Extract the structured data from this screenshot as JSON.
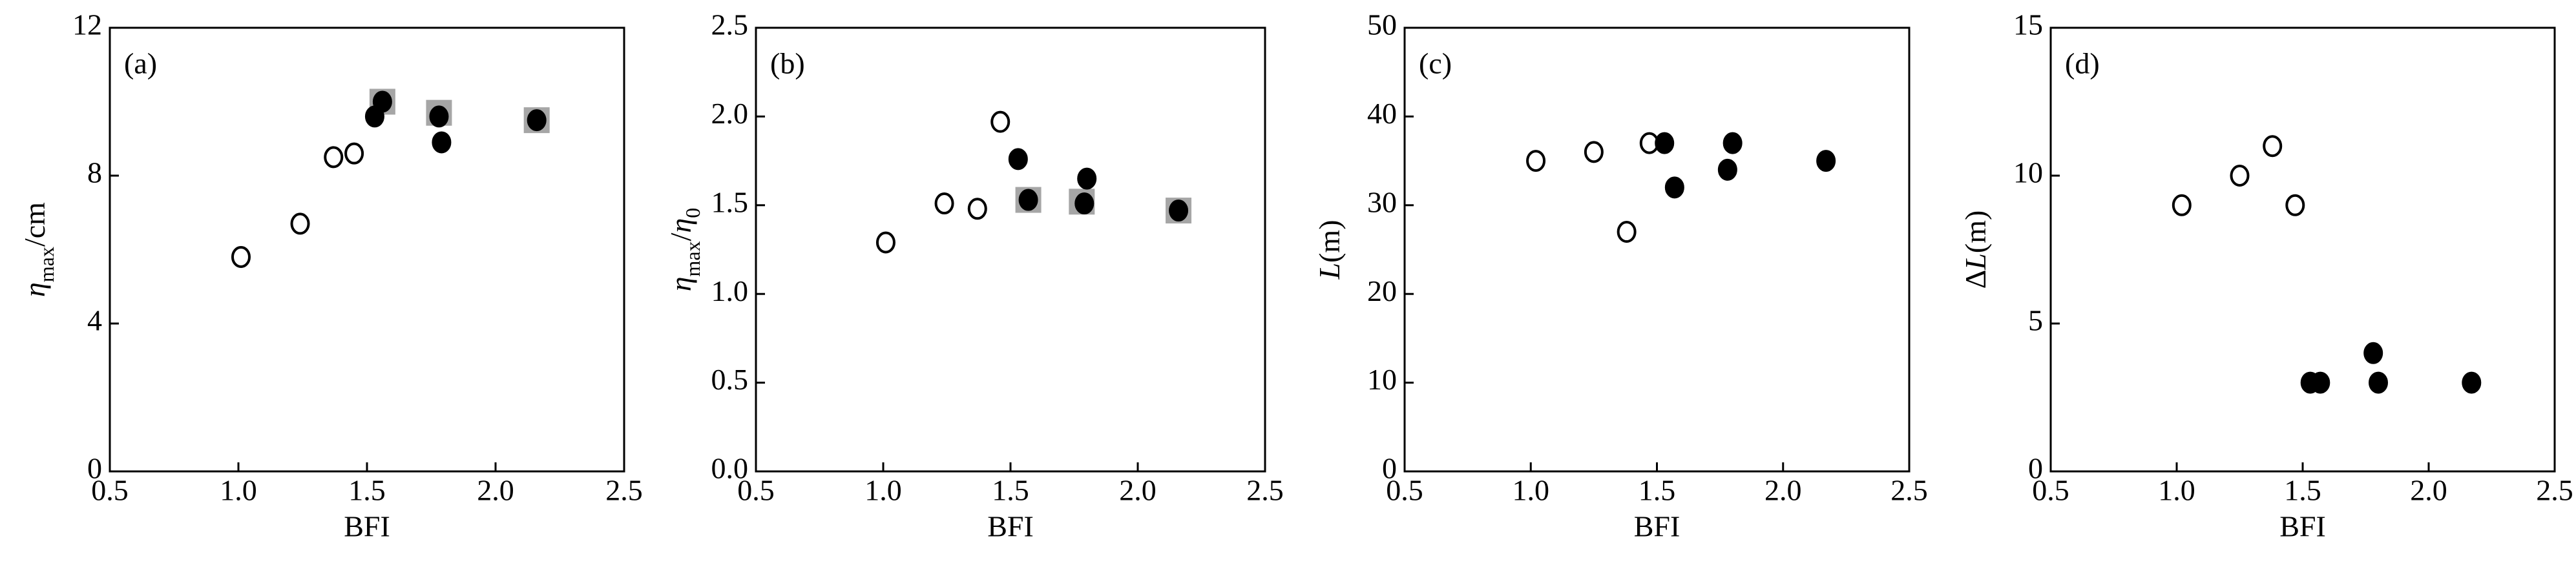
{
  "chart_data": [
    {
      "type": "scatter",
      "annotation": "(a)",
      "xlabel": "BFI",
      "ylabel": [
        {
          "text": "η",
          "italic": true
        },
        {
          "text": "max",
          "sub": true
        },
        {
          "text": "/cm"
        }
      ],
      "xlim": [
        0.5,
        2.5
      ],
      "xticks": [
        0.5,
        {
          "value": 1,
          "label": "1.0"
        },
        1.5,
        {
          "value": 2,
          "label": "2.0"
        },
        2.5
      ],
      "ylim": [
        0,
        12
      ],
      "yticks": [
        0,
        4,
        8,
        12
      ],
      "series": [
        {
          "marker": "square",
          "color": "#a6a6a6",
          "x": [
            1.56,
            1.78,
            2.16
          ],
          "values": [
            10.0,
            9.7,
            9.5
          ]
        },
        {
          "marker": "open-circle",
          "color": "#000000",
          "x": [
            1.01,
            1.24,
            1.37,
            1.45
          ],
          "values": [
            5.8,
            6.7,
            8.5,
            8.6
          ]
        },
        {
          "marker": "filled-circle",
          "color": "#000000",
          "x": [
            1.53,
            1.56,
            1.79,
            1.78,
            2.16
          ],
          "values": [
            9.6,
            10.0,
            8.9,
            9.6,
            9.5
          ]
        }
      ]
    },
    {
      "type": "scatter",
      "annotation": "(b)",
      "xlabel": "BFI",
      "ylabel": [
        {
          "text": "η",
          "italic": true
        },
        {
          "text": "max",
          "sub": true
        },
        {
          "text": "/"
        },
        {
          "text": "η",
          "italic": true
        },
        {
          "text": "0",
          "sub": true
        }
      ],
      "xlim": [
        0.5,
        2.5
      ],
      "xticks": [
        0.5,
        {
          "value": 1,
          "label": "1.0"
        },
        1.5,
        {
          "value": 2,
          "label": "2.0"
        },
        2.5
      ],
      "ylim": [
        0,
        2.5
      ],
      "yticks": [
        {
          "value": 0,
          "label": "0.0"
        },
        0.5,
        {
          "value": 1,
          "label": "1.0"
        },
        1.5,
        {
          "value": 2,
          "label": "2.0"
        },
        2.5
      ],
      "series": [
        {
          "marker": "square",
          "color": "#a6a6a6",
          "x": [
            1.57,
            1.78,
            2.16
          ],
          "values": [
            1.53,
            1.52,
            1.47
          ]
        },
        {
          "marker": "open-circle",
          "color": "#000000",
          "x": [
            1.01,
            1.24,
            1.37,
            1.46
          ],
          "values": [
            1.29,
            1.51,
            1.48,
            1.97
          ]
        },
        {
          "marker": "filled-circle",
          "color": "#000000",
          "x": [
            1.53,
            1.57,
            1.79,
            1.8,
            2.16
          ],
          "values": [
            1.76,
            1.53,
            1.51,
            1.65,
            1.47
          ]
        }
      ]
    },
    {
      "type": "scatter",
      "annotation": "(c)",
      "xlabel": "BFI",
      "ylabel": [
        {
          "text": "L",
          "italic": true
        },
        {
          "text": "(m)"
        }
      ],
      "xlim": [
        0.5,
        2.5
      ],
      "xticks": [
        0.5,
        {
          "value": 1,
          "label": "1.0"
        },
        1.5,
        {
          "value": 2,
          "label": "2.0"
        },
        2.5
      ],
      "ylim": [
        0,
        50
      ],
      "yticks": [
        0,
        10,
        20,
        30,
        40,
        50
      ],
      "series": [
        {
          "marker": "open-circle",
          "color": "#000000",
          "x": [
            1.02,
            1.25,
            1.38,
            1.47
          ],
          "values": [
            35,
            36,
            27,
            37
          ]
        },
        {
          "marker": "filled-circle",
          "color": "#000000",
          "x": [
            1.53,
            1.57,
            1.78,
            1.8,
            2.17
          ],
          "values": [
            37,
            32,
            34,
            37,
            35
          ]
        }
      ]
    },
    {
      "type": "scatter",
      "annotation": "(d)",
      "xlabel": "BFI",
      "ylabel": [
        {
          "text": "Δ"
        },
        {
          "text": "L",
          "italic": true
        },
        {
          "text": "(m)"
        }
      ],
      "xlim": [
        0.5,
        2.5
      ],
      "xticks": [
        0.5,
        {
          "value": 1,
          "label": "1.0"
        },
        1.5,
        {
          "value": 2,
          "label": "2.0"
        },
        2.5
      ],
      "ylim": [
        0,
        15
      ],
      "yticks": [
        0,
        5,
        10,
        15
      ],
      "series": [
        {
          "marker": "open-circle",
          "color": "#000000",
          "x": [
            1.02,
            1.25,
            1.38,
            1.47
          ],
          "values": [
            9,
            10,
            11,
            9
          ]
        },
        {
          "marker": "filled-circle",
          "color": "#000000",
          "x": [
            1.53,
            1.57,
            1.78,
            1.8,
            2.17
          ],
          "values": [
            3,
            3,
            4,
            3,
            3
          ]
        }
      ]
    }
  ]
}
